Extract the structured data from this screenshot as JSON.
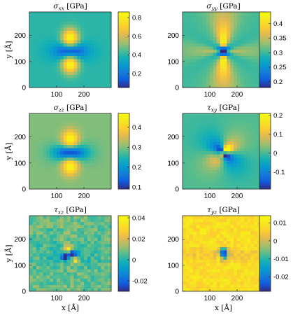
{
  "chart_data": [
    {
      "type": "heatmap",
      "title_symbol": "σ",
      "title_sub": "xx",
      "title_unit": "[GPa]",
      "xticks": [
        "100",
        "200"
      ],
      "yticks": [
        "0",
        "100",
        "200"
      ],
      "ylabel": "y [Å]",
      "xlabel": "",
      "grid": false,
      "xlim": [
        0,
        300
      ],
      "ylim": [
        0,
        290
      ],
      "colorbar": {
        "ticks": [
          "0.2",
          "0.4",
          "0.6",
          "0.8"
        ],
        "tick_values": [
          0.2,
          0.4,
          0.6,
          0.8
        ],
        "min": 0.05,
        "max": 0.86
      },
      "field": {
        "pattern": "vertical_lobes",
        "background": 0.4,
        "center": 0.05,
        "lobes": 0.86,
        "noise": 0.0
      }
    },
    {
      "type": "heatmap",
      "title_symbol": "σ",
      "title_sub": "yy",
      "title_unit": "[GPa]",
      "xticks": [
        "100",
        "200"
      ],
      "yticks": [
        "0",
        "100",
        "200"
      ],
      "ylabel": "",
      "xlabel": "",
      "grid": false,
      "xlim": [
        0,
        300
      ],
      "ylim": [
        0,
        290
      ],
      "colorbar": {
        "ticks": [
          "0.2",
          "0.25",
          "0.3",
          "0.35",
          "0.4"
        ],
        "tick_values": [
          0.2,
          0.25,
          0.3,
          0.35,
          0.4
        ],
        "min": 0.18,
        "max": 0.44
      },
      "field": {
        "pattern": "star",
        "background": 0.3,
        "center": 0.18,
        "lobes": 0.44,
        "noise": 0.0
      }
    },
    {
      "type": "heatmap",
      "title_symbol": "σ",
      "title_sub": "zz",
      "title_unit": "[GPa]",
      "xticks": [
        "100",
        "200"
      ],
      "yticks": [
        "0",
        "100",
        "200"
      ],
      "ylabel": "y [Å]",
      "xlabel": "",
      "grid": false,
      "xlim": [
        0,
        300
      ],
      "ylim": [
        0,
        290
      ],
      "colorbar": {
        "ticks": [
          "0.1",
          "0.2",
          "0.3",
          "0.4"
        ],
        "tick_values": [
          0.1,
          0.2,
          0.3,
          0.4
        ],
        "min": 0.09,
        "max": 0.47
      },
      "field": {
        "pattern": "vertical_lobes",
        "background": 0.3,
        "center": 0.09,
        "lobes": 0.47,
        "noise": 0.0
      }
    },
    {
      "type": "heatmap",
      "title_symbol": "τ",
      "title_sub": "xy",
      "title_unit": "[GPa]",
      "xticks": [
        "100",
        "200"
      ],
      "yticks": [
        "0",
        "100",
        "200"
      ],
      "ylabel": "",
      "xlabel": "",
      "grid": false,
      "xlim": [
        0,
        300
      ],
      "ylim": [
        0,
        290
      ],
      "colorbar": {
        "ticks": [
          "-0.1",
          "0",
          "0.1",
          "0.2"
        ],
        "tick_values": [
          -0.1,
          0,
          0.1,
          0.2
        ],
        "min": -0.19,
        "max": 0.21
      },
      "field": {
        "pattern": "shear",
        "background": 0.0,
        "center": 0.0,
        "lobes": 0.21,
        "noise": 0.0
      }
    },
    {
      "type": "heatmap",
      "title_symbol": "τ",
      "title_sub": "xz",
      "title_unit": "[GPa]",
      "xticks": [
        "100",
        "200"
      ],
      "yticks": [
        "0",
        "100",
        "200"
      ],
      "ylabel": "y [Å]",
      "xlabel": "x [Å]",
      "grid": false,
      "xlim": [
        0,
        300
      ],
      "ylim": [
        0,
        290
      ],
      "colorbar": {
        "ticks": [
          "-0.02",
          "0",
          "0.02",
          "0.04"
        ],
        "tick_values": [
          -0.02,
          0,
          0.02,
          0.04
        ],
        "min": -0.03,
        "max": 0.042
      },
      "field": {
        "pattern": "noisy_quadrupole",
        "background": 0.008,
        "center": -0.03,
        "lobes": 0.042,
        "noise": 0.006
      }
    },
    {
      "type": "heatmap",
      "title_symbol": "τ",
      "title_sub": "yz",
      "title_unit": "[GPa]",
      "xticks": [
        "100",
        "200"
      ],
      "yticks": [
        "0",
        "100",
        "200"
      ],
      "ylabel": "",
      "xlabel": "x [Å]",
      "grid": false,
      "xlim": [
        0,
        300
      ],
      "ylim": [
        0,
        290
      ],
      "colorbar": {
        "ticks": [
          "-0.02",
          "-0.01",
          "0",
          "0.01"
        ],
        "tick_values": [
          -0.02,
          -0.01,
          0,
          0.01
        ],
        "min": -0.028,
        "max": 0.014
      },
      "field": {
        "pattern": "noisy_horizontal",
        "background": 0.008,
        "center": -0.028,
        "lobes": -0.004,
        "noise": 0.003
      }
    }
  ]
}
